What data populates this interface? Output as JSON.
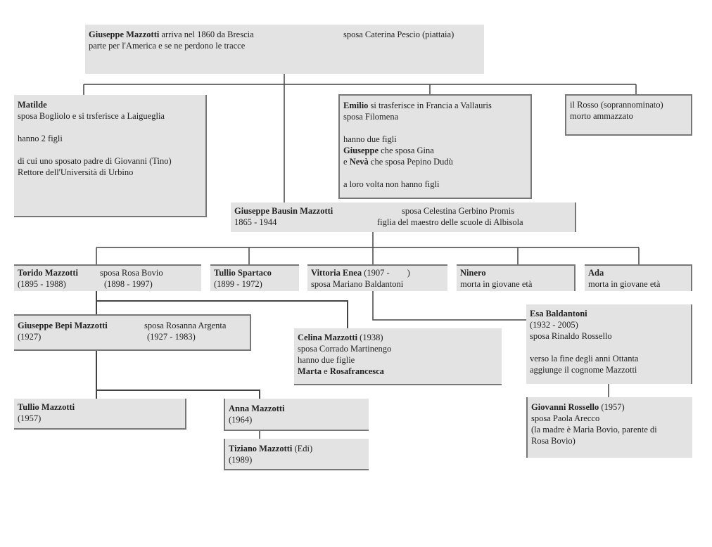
{
  "people": {
    "root": {
      "name": "Giuseppe Mazzotti",
      "l1": " arriva nel 1860 da Brescia",
      "spouse": "sposa Caterina Pescio (piattaia)",
      "l2": "parte per l'America e se ne perdono le tracce"
    },
    "matilde": {
      "name": "Matilde",
      "l1": "sposa Bogliolo e si trsferisce a Laigueglia",
      "l2": "hanno 2 figli",
      "l3": "di cui uno sposato padre di Giovanni (Tino)",
      "l4": "Rettore dell'Università di Urbino"
    },
    "emilio": {
      "name": "Emilio",
      "l1": " si trasferisce in Francia a Vallauris",
      "l2": "sposa Filomena",
      "l3": "hanno due figli",
      "c1": "Giuseppe",
      "c1t": " che sposa Gina",
      "c2p": "e ",
      "c2": "Nevà",
      "c2t": " che sposa Pepino Dudù",
      "l4": "a loro volta non hanno figli"
    },
    "rosso": {
      "l1": "il Rosso (soprannominato)",
      "l2": "morto ammazzato"
    },
    "bausin": {
      "name": "Giuseppe Bausin Mazzotti",
      "years": "1865 - 1944",
      "spouse": "sposa Celestina Gerbino Promis",
      "spouse2": "figlia del maestro delle scuole di Albisola"
    },
    "torido": {
      "name": "Torido Mazzotti",
      "years": "(1895 - 1988)",
      "spouse": "sposa Rosa Bovio",
      "spouse_years": "(1898 - 1997)"
    },
    "tullio_s": {
      "name": "Tullio Spartaco",
      "years": "(1899 - 1972)"
    },
    "vittoria": {
      "name": "Vittoria Enea",
      "years": " (1907 -        )",
      "spouse": "sposa Mariano Baldantoni"
    },
    "ninero": {
      "name": "Ninero",
      "l1": "morta in giovane età"
    },
    "ada": {
      "name": "Ada",
      "l1": "morta in giovane età"
    },
    "bepi": {
      "name": "Giuseppe Bepi Mazzotti",
      "years": "(1927)",
      "spouse": "sposa Rosanna Argenta",
      "spouse_years": "(1927 - 1983)"
    },
    "celina": {
      "name": "Celina Mazzotti",
      "years": " (1938)",
      "l1": "sposa Corrado Martinengo",
      "l2": "hanno due figlie",
      "c1": "Marta",
      "mid": " e ",
      "c2": "Rosafrancesca"
    },
    "esa": {
      "name": "Esa Baldantoni",
      "years": "(1932 - 2005)",
      "l1": "sposa Rinaldo Rossello",
      "l2": "verso la fine degli anni Ottanta",
      "l3": "aggiunge il cognome Mazzotti"
    },
    "tullio_m": {
      "name": "Tullio Mazzotti",
      "years": "(1957)"
    },
    "anna": {
      "name": "Anna Mazzotti",
      "years": "(1964)"
    },
    "tiziano": {
      "name": "Tiziano Mazzotti",
      "nick": " (Edi)",
      "years": "(1989)"
    },
    "giovanni": {
      "name": "Giovanni Rossello",
      "years": " (1957)",
      "l1": "sposa Paola Arecco",
      "l2": "(la madre è Maria Bovio, parente di",
      "l3": "Rosa Bovio)"
    }
  },
  "colors": {
    "box": "#e3e3e3",
    "line": "#444444"
  }
}
